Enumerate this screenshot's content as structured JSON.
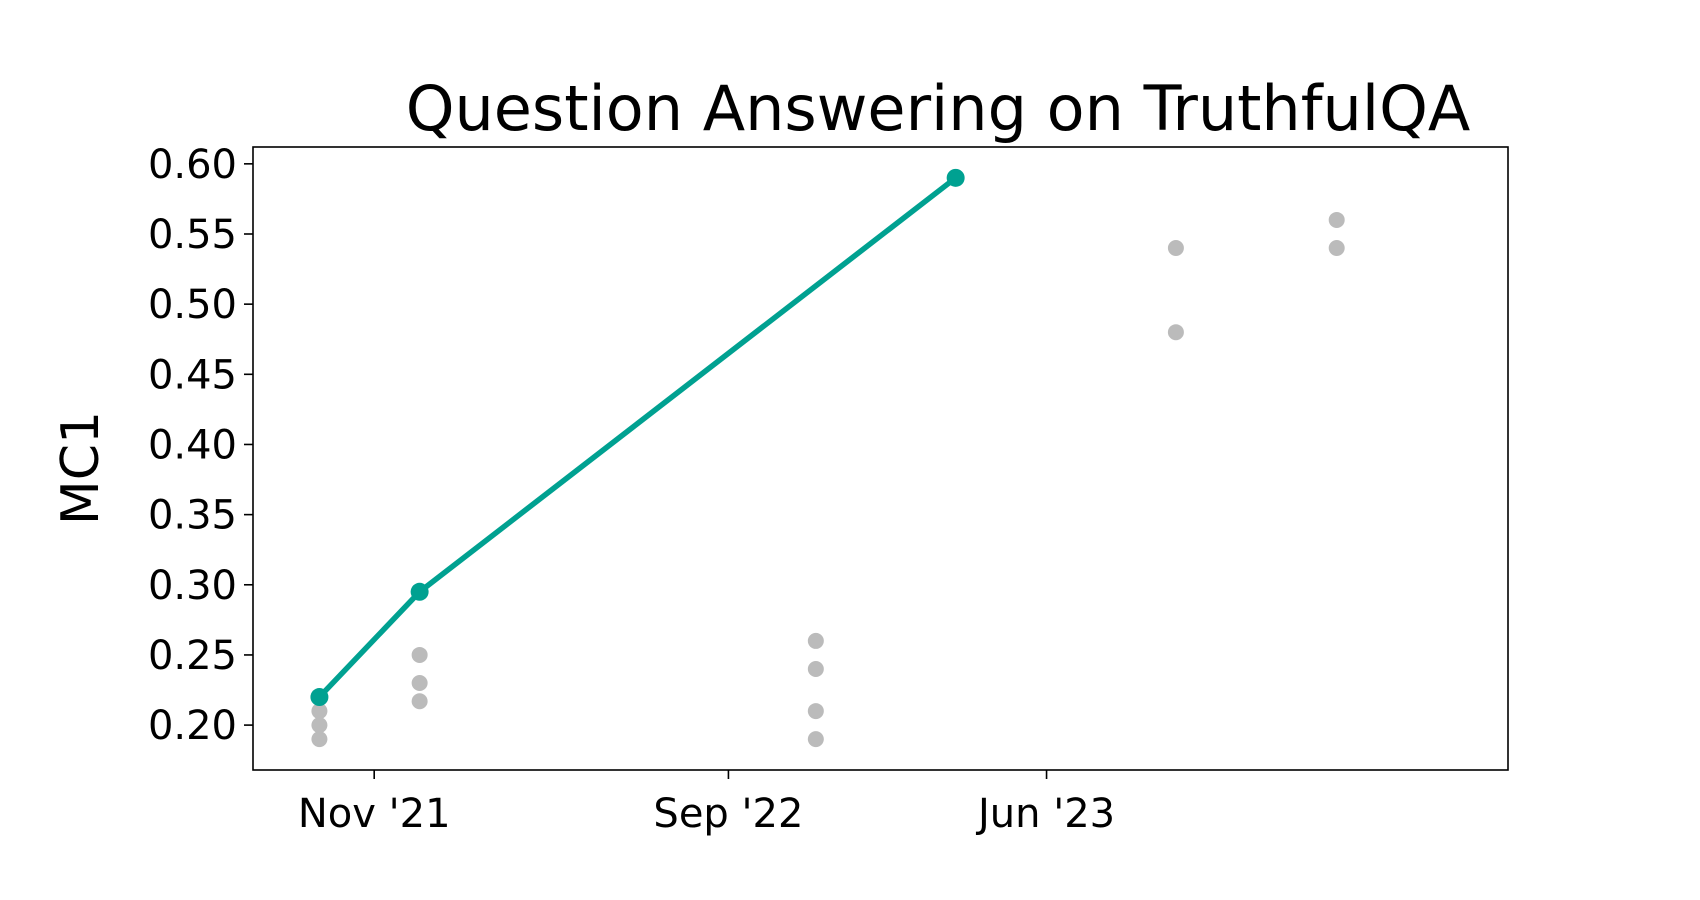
{
  "chart_data": {
    "type": "scatter",
    "title": "Question Answering on TruthfulQA",
    "xlabel": "",
    "ylabel": "MC1",
    "x_ticks": [
      {
        "date": "2021-11-01",
        "label": "Nov '21"
      },
      {
        "date": "2022-09-01",
        "label": "Sep '22"
      },
      {
        "date": "2023-06-01",
        "label": "Jun '23"
      }
    ],
    "xlim": [
      "2021-07-20",
      "2024-07-01"
    ],
    "ylim": [
      0.168,
      0.612
    ],
    "y_ticks": [
      0.2,
      0.25,
      0.3,
      0.35,
      0.4,
      0.45,
      0.5,
      0.55,
      0.6
    ],
    "y_tick_labels": [
      "0.20",
      "0.25",
      "0.30",
      "0.35",
      "0.40",
      "0.45",
      "0.50",
      "0.55",
      "0.60"
    ],
    "grid": false,
    "series": [
      {
        "kind": "scatter",
        "color": "#bbbbbb",
        "points": [
          {
            "x": "2021-09-15",
            "y": 0.19
          },
          {
            "x": "2021-09-15",
            "y": 0.2
          },
          {
            "x": "2021-09-15",
            "y": 0.21
          },
          {
            "x": "2021-12-10",
            "y": 0.25
          },
          {
            "x": "2021-12-10",
            "y": 0.23
          },
          {
            "x": "2021-12-10",
            "y": 0.217
          },
          {
            "x": "2022-11-15",
            "y": 0.26
          },
          {
            "x": "2022-11-15",
            "y": 0.24
          },
          {
            "x": "2022-11-15",
            "y": 0.21
          },
          {
            "x": "2022-11-15",
            "y": 0.19
          },
          {
            "x": "2023-09-20",
            "y": 0.54
          },
          {
            "x": "2023-09-20",
            "y": 0.48
          },
          {
            "x": "2024-02-05",
            "y": 0.56
          },
          {
            "x": "2024-02-05",
            "y": 0.54
          }
        ]
      },
      {
        "kind": "line",
        "color": "#00a191",
        "points": [
          {
            "x": "2021-09-15",
            "y": 0.22
          },
          {
            "x": "2021-12-10",
            "y": 0.295
          },
          {
            "x": "2023-03-15",
            "y": 0.59
          }
        ]
      }
    ]
  }
}
